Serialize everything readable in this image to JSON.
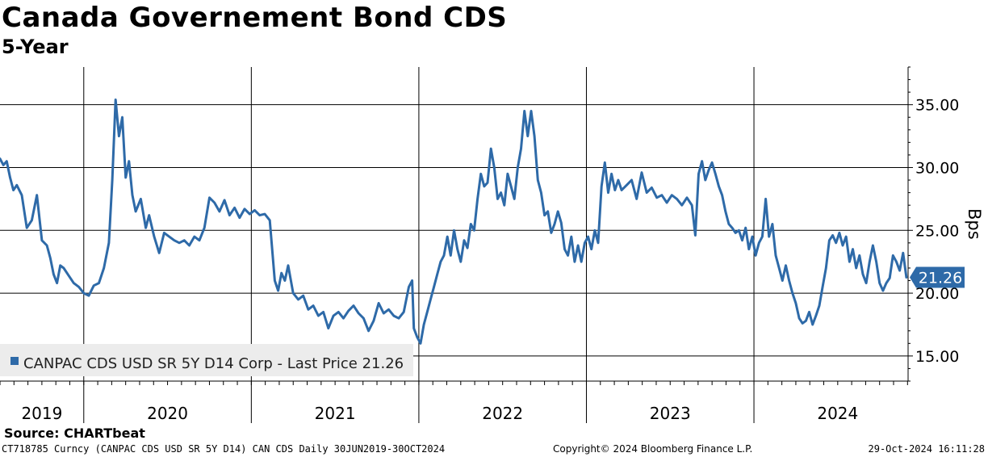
{
  "title": "Canada Governement Bond CDS",
  "subtitle": "5-Year",
  "source": "Source: CHARTbeat",
  "footer": {
    "left": "CT718785 Curncy (CANPAC CDS USD SR 5Y D14) CAN CDS  Daily 30JUN2019-30OCT2024",
    "middle": "Copyright© 2024 Bloomberg Finance L.P.",
    "right": "29-Oct-2024 16:11:28"
  },
  "colors": {
    "line": "#2E6AA8",
    "badge": "#2E6AA8"
  },
  "chart_data": {
    "type": "line",
    "ylabel": "Bps",
    "ylim": [
      13,
      38
    ],
    "yticks": [
      15,
      20,
      25,
      30,
      35
    ],
    "ytick_labels": [
      "15.00",
      "20.00",
      "25.00",
      "30.00",
      "35.00"
    ],
    "xlim": [
      2019.5,
      2024.92
    ],
    "year_boundaries": [
      2020,
      2021,
      2022,
      2023,
      2024
    ],
    "year_labels": [
      {
        "label": "2019",
        "x": 2019.75
      },
      {
        "label": "2020",
        "x": 2020.5
      },
      {
        "label": "2021",
        "x": 2021.5
      },
      {
        "label": "2022",
        "x": 2022.5
      },
      {
        "label": "2023",
        "x": 2023.5
      },
      {
        "label": "2024",
        "x": 2024.5
      }
    ],
    "last_value_label": "21.26",
    "last_value": 21.26,
    "legend": "CANPAC CDS USD SR 5Y D14 Corp - Last Price 21.26",
    "series": [
      {
        "name": "CANPAC CDS USD SR 5Y D14 Corp",
        "points": [
          [
            2019.5,
            30.7
          ],
          [
            2019.52,
            30.2
          ],
          [
            2019.54,
            30.5
          ],
          [
            2019.56,
            29.2
          ],
          [
            2019.58,
            28.2
          ],
          [
            2019.6,
            28.6
          ],
          [
            2019.63,
            27.8
          ],
          [
            2019.66,
            25.2
          ],
          [
            2019.69,
            25.8
          ],
          [
            2019.72,
            27.8
          ],
          [
            2019.75,
            24.2
          ],
          [
            2019.78,
            23.8
          ],
          [
            2019.8,
            22.8
          ],
          [
            2019.82,
            21.5
          ],
          [
            2019.84,
            20.8
          ],
          [
            2019.86,
            22.2
          ],
          [
            2019.88,
            22.0
          ],
          [
            2019.91,
            21.4
          ],
          [
            2019.94,
            20.8
          ],
          [
            2019.97,
            20.5
          ],
          [
            2020.0,
            20.0
          ],
          [
            2020.03,
            19.8
          ],
          [
            2020.06,
            20.6
          ],
          [
            2020.09,
            20.8
          ],
          [
            2020.12,
            22.0
          ],
          [
            2020.15,
            24.0
          ],
          [
            2020.17,
            29.0
          ],
          [
            2020.19,
            35.4
          ],
          [
            2020.21,
            32.5
          ],
          [
            2020.23,
            34.0
          ],
          [
            2020.25,
            29.2
          ],
          [
            2020.27,
            30.5
          ],
          [
            2020.29,
            27.8
          ],
          [
            2020.31,
            26.5
          ],
          [
            2020.34,
            27.5
          ],
          [
            2020.37,
            25.2
          ],
          [
            2020.39,
            26.2
          ],
          [
            2020.42,
            24.5
          ],
          [
            2020.45,
            23.2
          ],
          [
            2020.48,
            24.8
          ],
          [
            2020.51,
            24.5
          ],
          [
            2020.54,
            24.2
          ],
          [
            2020.57,
            24.0
          ],
          [
            2020.6,
            24.2
          ],
          [
            2020.63,
            23.8
          ],
          [
            2020.66,
            24.5
          ],
          [
            2020.69,
            24.2
          ],
          [
            2020.72,
            25.2
          ],
          [
            2020.75,
            27.6
          ],
          [
            2020.78,
            27.2
          ],
          [
            2020.81,
            26.5
          ],
          [
            2020.84,
            27.4
          ],
          [
            2020.87,
            26.2
          ],
          [
            2020.9,
            26.8
          ],
          [
            2020.93,
            26.0
          ],
          [
            2020.96,
            26.7
          ],
          [
            2020.99,
            26.3
          ],
          [
            2021.02,
            26.6
          ],
          [
            2021.05,
            26.2
          ],
          [
            2021.08,
            26.3
          ],
          [
            2021.11,
            25.8
          ],
          [
            2021.14,
            21.0
          ],
          [
            2021.16,
            20.2
          ],
          [
            2021.18,
            21.6
          ],
          [
            2021.2,
            21.0
          ],
          [
            2021.22,
            22.2
          ],
          [
            2021.25,
            20.0
          ],
          [
            2021.28,
            19.5
          ],
          [
            2021.31,
            19.8
          ],
          [
            2021.34,
            18.7
          ],
          [
            2021.37,
            19.0
          ],
          [
            2021.4,
            18.2
          ],
          [
            2021.43,
            18.5
          ],
          [
            2021.46,
            17.2
          ],
          [
            2021.49,
            18.2
          ],
          [
            2021.52,
            18.5
          ],
          [
            2021.55,
            18.0
          ],
          [
            2021.58,
            18.6
          ],
          [
            2021.61,
            19.0
          ],
          [
            2021.64,
            18.4
          ],
          [
            2021.67,
            18.0
          ],
          [
            2021.7,
            17.0
          ],
          [
            2021.73,
            17.8
          ],
          [
            2021.76,
            19.2
          ],
          [
            2021.79,
            18.4
          ],
          [
            2021.82,
            18.7
          ],
          [
            2021.85,
            18.2
          ],
          [
            2021.88,
            18.0
          ],
          [
            2021.91,
            18.5
          ],
          [
            2021.94,
            20.5
          ],
          [
            2021.96,
            21.0
          ],
          [
            2021.97,
            17.2
          ],
          [
            2021.99,
            16.5
          ],
          [
            2022.01,
            16.0
          ],
          [
            2022.03,
            17.5
          ],
          [
            2022.05,
            18.5
          ],
          [
            2022.07,
            19.5
          ],
          [
            2022.09,
            20.5
          ],
          [
            2022.11,
            21.5
          ],
          [
            2022.13,
            22.5
          ],
          [
            2022.15,
            23.0
          ],
          [
            2022.17,
            24.5
          ],
          [
            2022.19,
            23.0
          ],
          [
            2022.21,
            25.0
          ],
          [
            2022.23,
            23.5
          ],
          [
            2022.25,
            22.5
          ],
          [
            2022.27,
            24.2
          ],
          [
            2022.29,
            23.6
          ],
          [
            2022.31,
            25.5
          ],
          [
            2022.33,
            25.0
          ],
          [
            2022.35,
            27.5
          ],
          [
            2022.37,
            29.5
          ],
          [
            2022.39,
            28.5
          ],
          [
            2022.41,
            28.8
          ],
          [
            2022.43,
            31.5
          ],
          [
            2022.45,
            30.0
          ],
          [
            2022.47,
            27.5
          ],
          [
            2022.49,
            28.0
          ],
          [
            2022.51,
            27.0
          ],
          [
            2022.53,
            29.5
          ],
          [
            2022.55,
            28.5
          ],
          [
            2022.57,
            27.5
          ],
          [
            2022.59,
            30.0
          ],
          [
            2022.61,
            31.5
          ],
          [
            2022.63,
            34.5
          ],
          [
            2022.65,
            32.5
          ],
          [
            2022.67,
            34.5
          ],
          [
            2022.69,
            32.5
          ],
          [
            2022.71,
            29.0
          ],
          [
            2022.73,
            28.0
          ],
          [
            2022.75,
            26.2
          ],
          [
            2022.77,
            26.5
          ],
          [
            2022.79,
            24.8
          ],
          [
            2022.81,
            25.5
          ],
          [
            2022.83,
            26.5
          ],
          [
            2022.85,
            25.6
          ],
          [
            2022.87,
            23.5
          ],
          [
            2022.89,
            23.0
          ],
          [
            2022.91,
            24.5
          ],
          [
            2022.93,
            22.5
          ],
          [
            2022.95,
            23.8
          ],
          [
            2022.97,
            22.5
          ],
          [
            2022.99,
            24.0
          ],
          [
            2023.01,
            24.5
          ],
          [
            2023.03,
            23.5
          ],
          [
            2023.05,
            25.0
          ],
          [
            2023.07,
            24.0
          ],
          [
            2023.09,
            28.5
          ],
          [
            2023.11,
            30.4
          ],
          [
            2023.13,
            28.0
          ],
          [
            2023.15,
            29.5
          ],
          [
            2023.17,
            28.2
          ],
          [
            2023.19,
            29.0
          ],
          [
            2023.21,
            28.2
          ],
          [
            2023.24,
            28.6
          ],
          [
            2023.27,
            29.0
          ],
          [
            2023.3,
            27.5
          ],
          [
            2023.33,
            29.6
          ],
          [
            2023.36,
            28.0
          ],
          [
            2023.39,
            28.4
          ],
          [
            2023.42,
            27.6
          ],
          [
            2023.45,
            27.8
          ],
          [
            2023.48,
            27.2
          ],
          [
            2023.51,
            27.8
          ],
          [
            2023.54,
            27.5
          ],
          [
            2023.57,
            27.0
          ],
          [
            2023.6,
            27.6
          ],
          [
            2023.63,
            27.0
          ],
          [
            2023.65,
            24.6
          ],
          [
            2023.67,
            29.5
          ],
          [
            2023.69,
            30.5
          ],
          [
            2023.71,
            29.0
          ],
          [
            2023.73,
            29.8
          ],
          [
            2023.75,
            30.4
          ],
          [
            2023.77,
            29.5
          ],
          [
            2023.79,
            28.5
          ],
          [
            2023.81,
            27.8
          ],
          [
            2023.83,
            26.5
          ],
          [
            2023.85,
            25.5
          ],
          [
            2023.87,
            25.2
          ],
          [
            2023.89,
            24.8
          ],
          [
            2023.91,
            25.0
          ],
          [
            2023.93,
            24.2
          ],
          [
            2023.95,
            25.2
          ],
          [
            2023.97,
            23.5
          ],
          [
            2023.99,
            24.5
          ],
          [
            2024.01,
            23.0
          ],
          [
            2024.03,
            24.0
          ],
          [
            2024.05,
            24.5
          ],
          [
            2024.07,
            27.5
          ],
          [
            2024.09,
            24.5
          ],
          [
            2024.11,
            25.5
          ],
          [
            2024.13,
            23.0
          ],
          [
            2024.15,
            22.0
          ],
          [
            2024.17,
            21.0
          ],
          [
            2024.19,
            22.2
          ],
          [
            2024.21,
            21.0
          ],
          [
            2024.23,
            20.0
          ],
          [
            2024.25,
            19.2
          ],
          [
            2024.27,
            18.0
          ],
          [
            2024.29,
            17.6
          ],
          [
            2024.31,
            17.8
          ],
          [
            2024.33,
            18.5
          ],
          [
            2024.35,
            17.5
          ],
          [
            2024.37,
            18.2
          ],
          [
            2024.39,
            19.0
          ],
          [
            2024.41,
            20.5
          ],
          [
            2024.43,
            22.0
          ],
          [
            2024.45,
            24.2
          ],
          [
            2024.47,
            24.6
          ],
          [
            2024.49,
            24.0
          ],
          [
            2024.51,
            24.8
          ],
          [
            2024.53,
            23.8
          ],
          [
            2024.55,
            24.5
          ],
          [
            2024.57,
            22.5
          ],
          [
            2024.59,
            23.5
          ],
          [
            2024.61,
            22.0
          ],
          [
            2024.63,
            23.0
          ],
          [
            2024.65,
            21.5
          ],
          [
            2024.67,
            20.8
          ],
          [
            2024.69,
            22.5
          ],
          [
            2024.71,
            23.8
          ],
          [
            2024.73,
            22.5
          ],
          [
            2024.75,
            20.8
          ],
          [
            2024.77,
            20.2
          ],
          [
            2024.79,
            20.8
          ],
          [
            2024.81,
            21.2
          ],
          [
            2024.83,
            23.0
          ],
          [
            2024.85,
            22.5
          ],
          [
            2024.87,
            21.8
          ],
          [
            2024.89,
            23.2
          ],
          [
            2024.91,
            21.26
          ]
        ]
      }
    ]
  }
}
